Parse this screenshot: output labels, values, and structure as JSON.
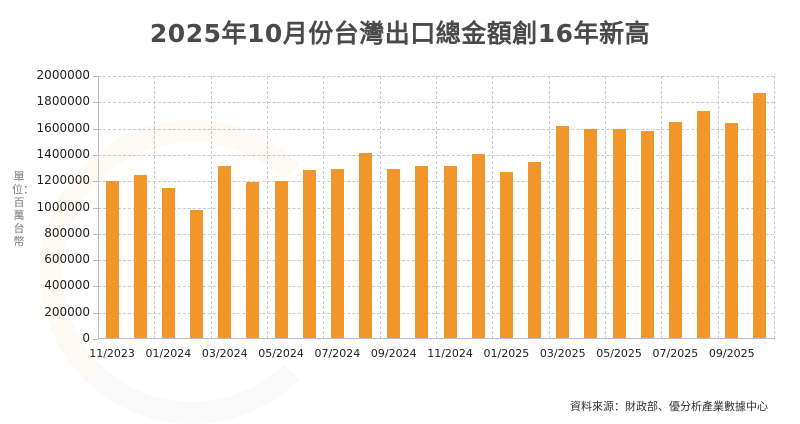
{
  "title": "2025年10月份台灣出口總金額創16年新高",
  "y_axis_label": "單位：百萬台幣",
  "source": "資料來源：財政部、優分析產業數據中心",
  "colors": {
    "bar": "#f0962a",
    "title": "#4a4a4a",
    "grid": "#c8c8cf"
  },
  "chart_data": {
    "type": "bar",
    "title": "2025年10月份台灣出口總金額創16年新高",
    "xlabel": "",
    "ylabel": "單位：百萬台幣",
    "ylim": [
      0,
      2000000
    ],
    "y_ticks": [
      0,
      200000,
      400000,
      600000,
      800000,
      1000000,
      1200000,
      1400000,
      1600000,
      1800000,
      2000000
    ],
    "x_tick_labels": [
      "11/2023",
      "01/2024",
      "03/2024",
      "05/2024",
      "07/2024",
      "09/2024",
      "11/2024",
      "01/2025",
      "03/2025",
      "05/2025",
      "07/2025",
      "09/2025"
    ],
    "grid": true,
    "legend": "none",
    "categories": [
      "11/2023",
      "12/2023",
      "01/2024",
      "02/2024",
      "03/2024",
      "04/2024",
      "05/2024",
      "06/2024",
      "07/2024",
      "08/2024",
      "09/2024",
      "10/2024",
      "11/2024",
      "12/2024",
      "01/2025",
      "02/2025",
      "03/2025",
      "04/2025",
      "05/2025",
      "06/2025",
      "07/2025",
      "08/2025",
      "09/2025",
      "10/2025"
    ],
    "values": [
      1201000,
      1249000,
      1148000,
      981000,
      1313000,
      1196000,
      1204000,
      1283000,
      1293000,
      1417000,
      1293000,
      1316000,
      1316000,
      1407000,
      1268000,
      1346000,
      1620000,
      1595000,
      1595000,
      1584000,
      1648000,
      1732000,
      1640000,
      1873000
    ]
  }
}
